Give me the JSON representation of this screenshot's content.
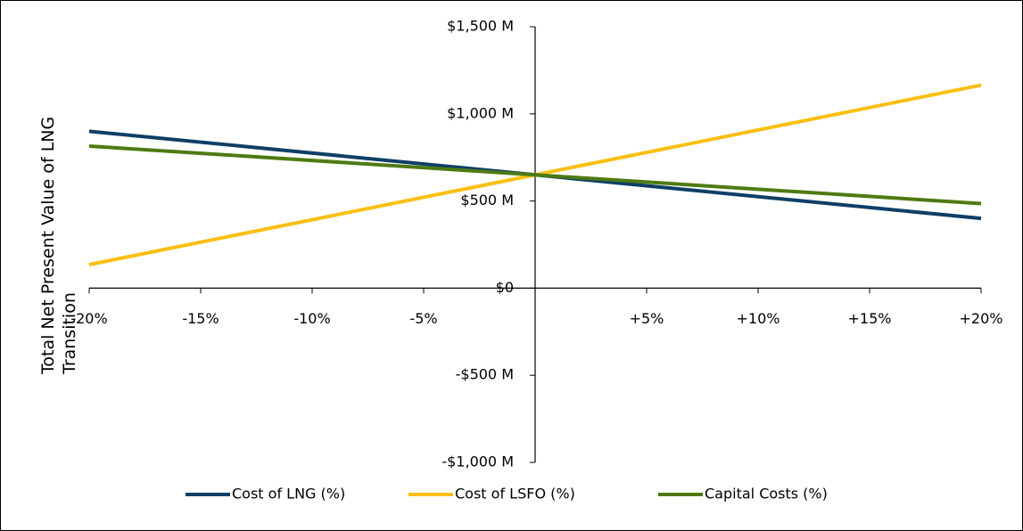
{
  "chart_data": {
    "type": "line",
    "y_label": "Total Net Present Value of LNG Transition",
    "x": [
      -20,
      0,
      20
    ],
    "series": [
      {
        "name": "Cost of LNG (%)",
        "color": "#0e3f66",
        "values": [
          900,
          650,
          400
        ]
      },
      {
        "name": "Cost of LSFO (%)",
        "color": "#fbbf13",
        "values": [
          135,
          650,
          1165
        ]
      },
      {
        "name": "Capital Costs (%)",
        "color": "#4e7a13",
        "values": [
          815,
          650,
          485
        ]
      }
    ],
    "xlim": [
      -20,
      20
    ],
    "xticks": [
      {
        "value": -20,
        "label": "-20%"
      },
      {
        "value": -15,
        "label": "-15%"
      },
      {
        "value": -10,
        "label": "-10%"
      },
      {
        "value": -5,
        "label": "-5%"
      },
      {
        "value": 5,
        "label": "+5%"
      },
      {
        "value": 10,
        "label": "+10%"
      },
      {
        "value": 15,
        "label": "+15%"
      },
      {
        "value": 20,
        "label": "+20%"
      }
    ],
    "ylim": [
      -1000,
      1500
    ],
    "yticks": [
      {
        "value": -1000,
        "label": "-$1,000 M"
      },
      {
        "value": -500,
        "label": "-$500 M"
      },
      {
        "value": 0,
        "label": "$0"
      },
      {
        "value": 500,
        "label": "$500 M"
      },
      {
        "value": 1000,
        "label": "$1,000 M"
      },
      {
        "value": 1500,
        "label": "$1,500 M"
      }
    ],
    "legend": "bottom"
  }
}
